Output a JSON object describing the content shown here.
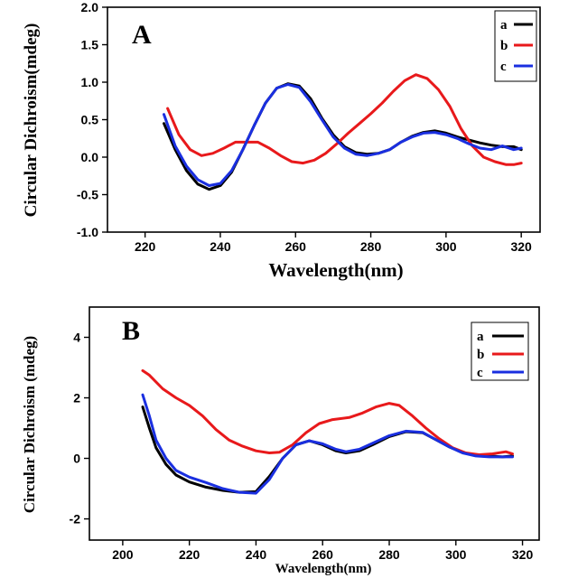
{
  "chart_data": [
    {
      "type": "line",
      "panel_label": "A",
      "xlabel": "Wavelength(nm)",
      "ylabel": "Circular Dichroism(mdeg)",
      "xlim": [
        210,
        325
      ],
      "ylim": [
        -1.0,
        2.0
      ],
      "xticks": [
        220,
        240,
        260,
        280,
        300,
        320
      ],
      "yticks": [
        -1.0,
        -0.5,
        0.0,
        0.5,
        1.0,
        1.5,
        2.0
      ],
      "ytick_labels": [
        "-1.0",
        "-0.5",
        "0.0",
        "0.5",
        "1.0",
        "1.5",
        "2.0"
      ],
      "legend_position": "top-right",
      "series": [
        {
          "name": "a",
          "color": "#000000",
          "points": [
            [
              225,
              0.45
            ],
            [
              228,
              0.1
            ],
            [
              231,
              -0.18
            ],
            [
              234,
              -0.36
            ],
            [
              237,
              -0.43
            ],
            [
              240,
              -0.38
            ],
            [
              243,
              -0.2
            ],
            [
              246,
              0.1
            ],
            [
              249,
              0.42
            ],
            [
              252,
              0.72
            ],
            [
              255,
              0.92
            ],
            [
              258,
              0.98
            ],
            [
              261,
              0.95
            ],
            [
              264,
              0.78
            ],
            [
              267,
              0.52
            ],
            [
              270,
              0.3
            ],
            [
              273,
              0.14
            ],
            [
              276,
              0.06
            ],
            [
              279,
              0.04
            ],
            [
              282,
              0.05
            ],
            [
              285,
              0.1
            ],
            [
              288,
              0.2
            ],
            [
              291,
              0.28
            ],
            [
              294,
              0.33
            ],
            [
              297,
              0.35
            ],
            [
              300,
              0.32
            ],
            [
              303,
              0.27
            ],
            [
              306,
              0.23
            ],
            [
              309,
              0.19
            ],
            [
              312,
              0.16
            ],
            [
              315,
              0.14
            ],
            [
              318,
              0.14
            ],
            [
              320,
              0.1
            ]
          ]
        },
        {
          "name": "b",
          "color": "#e8191b",
          "points": [
            [
              226,
              0.65
            ],
            [
              229,
              0.3
            ],
            [
              232,
              0.1
            ],
            [
              235,
              0.02
            ],
            [
              238,
              0.05
            ],
            [
              241,
              0.12
            ],
            [
              244,
              0.2
            ],
            [
              247,
              0.2
            ],
            [
              250,
              0.2
            ],
            [
              253,
              0.12
            ],
            [
              256,
              0.02
            ],
            [
              259,
              -0.06
            ],
            [
              262,
              -0.08
            ],
            [
              265,
              -0.04
            ],
            [
              268,
              0.05
            ],
            [
              271,
              0.18
            ],
            [
              274,
              0.32
            ],
            [
              277,
              0.45
            ],
            [
              280,
              0.58
            ],
            [
              283,
              0.72
            ],
            [
              286,
              0.88
            ],
            [
              289,
              1.02
            ],
            [
              292,
              1.1
            ],
            [
              295,
              1.05
            ],
            [
              298,
              0.9
            ],
            [
              301,
              0.68
            ],
            [
              304,
              0.38
            ],
            [
              307,
              0.15
            ],
            [
              310,
              0.0
            ],
            [
              313,
              -0.06
            ],
            [
              316,
              -0.1
            ],
            [
              318,
              -0.1
            ],
            [
              320,
              -0.08
            ]
          ]
        },
        {
          "name": "c",
          "color": "#1a2fe0",
          "points": [
            [
              225,
              0.57
            ],
            [
              228,
              0.15
            ],
            [
              231,
              -0.12
            ],
            [
              234,
              -0.3
            ],
            [
              237,
              -0.38
            ],
            [
              240,
              -0.35
            ],
            [
              243,
              -0.18
            ],
            [
              246,
              0.1
            ],
            [
              249,
              0.42
            ],
            [
              252,
              0.72
            ],
            [
              255,
              0.92
            ],
            [
              258,
              0.97
            ],
            [
              261,
              0.93
            ],
            [
              264,
              0.74
            ],
            [
              267,
              0.5
            ],
            [
              270,
              0.27
            ],
            [
              273,
              0.12
            ],
            [
              276,
              0.04
            ],
            [
              279,
              0.02
            ],
            [
              282,
              0.05
            ],
            [
              285,
              0.1
            ],
            [
              288,
              0.2
            ],
            [
              291,
              0.27
            ],
            [
              294,
              0.32
            ],
            [
              297,
              0.33
            ],
            [
              300,
              0.3
            ],
            [
              303,
              0.25
            ],
            [
              306,
              0.18
            ],
            [
              309,
              0.12
            ],
            [
              312,
              0.1
            ],
            [
              315,
              0.15
            ],
            [
              318,
              0.1
            ],
            [
              320,
              0.12
            ]
          ]
        }
      ]
    },
    {
      "type": "line",
      "panel_label": "B",
      "xlabel": "Wavelength(nm)",
      "ylabel": "Circular Dichroism (mdeg)",
      "xlim": [
        190,
        325
      ],
      "ylim": [
        -2.7,
        5.0
      ],
      "xticks": [
        200,
        220,
        240,
        260,
        280,
        300,
        320
      ],
      "yticks": [
        -2,
        0,
        2,
        4
      ],
      "ytick_labels": [
        "-2",
        "0",
        "2",
        "4"
      ],
      "legend_position": "top-right",
      "series": [
        {
          "name": "a",
          "color": "#000000",
          "points": [
            [
              206,
              1.7
            ],
            [
              208,
              1.0
            ],
            [
              210,
              0.35
            ],
            [
              213,
              -0.2
            ],
            [
              216,
              -0.55
            ],
            [
              220,
              -0.78
            ],
            [
              225,
              -0.95
            ],
            [
              230,
              -1.06
            ],
            [
              235,
              -1.12
            ],
            [
              240,
              -1.1
            ],
            [
              244,
              -0.6
            ],
            [
              248,
              0.0
            ],
            [
              252,
              0.45
            ],
            [
              256,
              0.58
            ],
            [
              260,
              0.45
            ],
            [
              264,
              0.25
            ],
            [
              267,
              0.18
            ],
            [
              271,
              0.25
            ],
            [
              275,
              0.45
            ],
            [
              280,
              0.72
            ],
            [
              285,
              0.88
            ],
            [
              290,
              0.85
            ],
            [
              294,
              0.62
            ],
            [
              298,
              0.38
            ],
            [
              302,
              0.2
            ],
            [
              306,
              0.1
            ],
            [
              310,
              0.08
            ],
            [
              314,
              0.05
            ],
            [
              317,
              0.08
            ]
          ]
        },
        {
          "name": "b",
          "color": "#e8191b",
          "points": [
            [
              206,
              2.9
            ],
            [
              208,
              2.75
            ],
            [
              212,
              2.3
            ],
            [
              216,
              2.0
            ],
            [
              220,
              1.75
            ],
            [
              224,
              1.4
            ],
            [
              228,
              0.95
            ],
            [
              232,
              0.6
            ],
            [
              236,
              0.4
            ],
            [
              240,
              0.25
            ],
            [
              244,
              0.18
            ],
            [
              247,
              0.2
            ],
            [
              251,
              0.45
            ],
            [
              255,
              0.85
            ],
            [
              259,
              1.15
            ],
            [
              263,
              1.28
            ],
            [
              268,
              1.35
            ],
            [
              272,
              1.5
            ],
            [
              276,
              1.7
            ],
            [
              280,
              1.82
            ],
            [
              283,
              1.75
            ],
            [
              287,
              1.4
            ],
            [
              291,
              1.0
            ],
            [
              295,
              0.65
            ],
            [
              299,
              0.35
            ],
            [
              303,
              0.18
            ],
            [
              307,
              0.12
            ],
            [
              311,
              0.15
            ],
            [
              315,
              0.22
            ],
            [
              317,
              0.15
            ]
          ]
        },
        {
          "name": "c",
          "color": "#1a2fe0",
          "points": [
            [
              206,
              2.1
            ],
            [
              208,
              1.4
            ],
            [
              210,
              0.6
            ],
            [
              213,
              0.0
            ],
            [
              216,
              -0.4
            ],
            [
              220,
              -0.62
            ],
            [
              225,
              -0.8
            ],
            [
              230,
              -1.0
            ],
            [
              235,
              -1.12
            ],
            [
              240,
              -1.15
            ],
            [
              244,
              -0.7
            ],
            [
              248,
              0.0
            ],
            [
              252,
              0.45
            ],
            [
              256,
              0.58
            ],
            [
              260,
              0.48
            ],
            [
              264,
              0.3
            ],
            [
              267,
              0.22
            ],
            [
              271,
              0.3
            ],
            [
              275,
              0.5
            ],
            [
              280,
              0.75
            ],
            [
              285,
              0.9
            ],
            [
              290,
              0.86
            ],
            [
              294,
              0.62
            ],
            [
              298,
              0.38
            ],
            [
              302,
              0.18
            ],
            [
              306,
              0.08
            ],
            [
              310,
              0.05
            ],
            [
              314,
              0.05
            ],
            [
              317,
              0.05
            ]
          ]
        }
      ]
    }
  ]
}
